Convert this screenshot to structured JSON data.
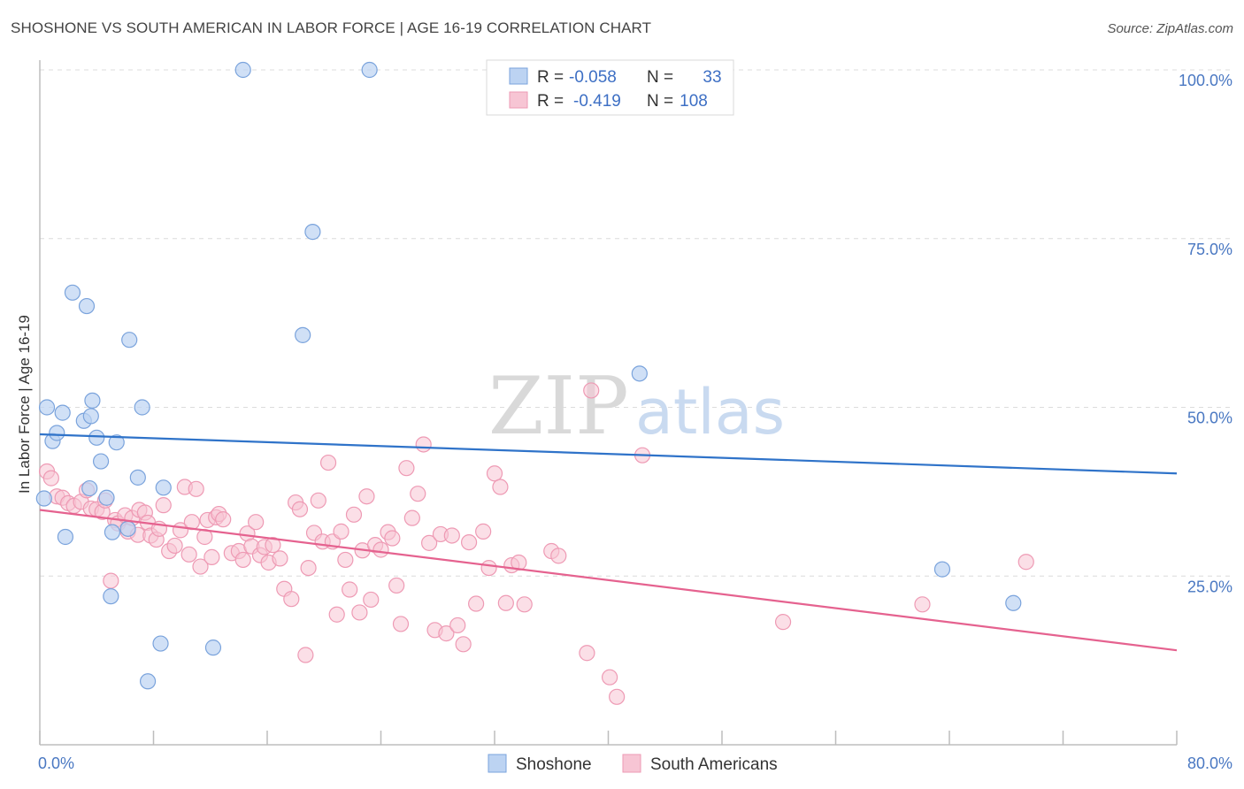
{
  "title": "SHOSHONE VS SOUTH AMERICAN IN LABOR FORCE | AGE 16-19 CORRELATION CHART",
  "source": "Source: ZipAtlas.com",
  "watermark": {
    "zip": "ZIP",
    "atlas": "atlas"
  },
  "legend_top": {
    "rows": [
      {
        "r_label": "R =",
        "r_value": "-0.058",
        "n_label": "N =",
        "n_value": "33"
      },
      {
        "r_label": "R =",
        "r_value": "-0.419",
        "n_label": "N =",
        "n_value": "108"
      }
    ]
  },
  "legend_bottom": {
    "items": [
      "Shoshone",
      "South Americans"
    ]
  },
  "colors": {
    "shoshone_fill": "#bcd3f2",
    "shoshone_stroke": "#7aa3dc",
    "shoshone_line": "#2f73c9",
    "south_fill": "#f7c5d4",
    "south_stroke": "#ee9ab4",
    "south_line": "#e5628f",
    "tick_label": "#4a78c2"
  },
  "chart_data": {
    "type": "scatter",
    "title": "SHOSHONE VS SOUTH AMERICAN IN LABOR FORCE | AGE 16-19 CORRELATION CHART",
    "ylabel": "In Labor Force | Age 16-19",
    "xlim": [
      0,
      80
    ],
    "ylim": [
      0,
      100
    ],
    "x_tick_labels": [
      "0.0%",
      "80.0%"
    ],
    "y_tick_labels": [
      "25.0%",
      "50.0%",
      "75.0%",
      "100.0%"
    ],
    "y_ticks": [
      25,
      50,
      75,
      100
    ],
    "grid": "horizontal dashed",
    "legend_position": "top-center",
    "series": [
      {
        "name": "Shoshone",
        "r": -0.058,
        "n": 33,
        "trend": {
          "x": [
            0,
            80
          ],
          "y": [
            46.0,
            40.2
          ]
        },
        "points": [
          [
            0.3,
            36.5
          ],
          [
            0.5,
            50
          ],
          [
            0.9,
            45
          ],
          [
            1.2,
            46.2
          ],
          [
            1.6,
            49.2
          ],
          [
            2.3,
            67
          ],
          [
            3.1,
            48
          ],
          [
            3.3,
            65
          ],
          [
            3.5,
            38
          ],
          [
            3.6,
            48.7
          ],
          [
            3.7,
            51
          ],
          [
            4.0,
            45.5
          ],
          [
            4.3,
            42
          ],
          [
            4.7,
            36.6
          ],
          [
            5.1,
            31.5
          ],
          [
            5.0,
            22
          ],
          [
            5.4,
            44.8
          ],
          [
            6.2,
            32
          ],
          [
            6.3,
            60
          ],
          [
            6.9,
            39.6
          ],
          [
            7.2,
            50
          ],
          [
            8.7,
            38.1
          ],
          [
            7.6,
            9.4
          ],
          [
            8.5,
            15
          ],
          [
            12.2,
            14.4
          ],
          [
            14.3,
            100
          ],
          [
            18.5,
            60.7
          ],
          [
            19.2,
            76
          ],
          [
            23.2,
            100
          ],
          [
            42.2,
            55
          ],
          [
            63.5,
            26
          ],
          [
            68.5,
            21
          ],
          [
            1.8,
            30.8
          ]
        ]
      },
      {
        "name": "South Americans",
        "r": -0.419,
        "n": 108,
        "trend": {
          "x": [
            0,
            80
          ],
          "y": [
            34.8,
            14.0
          ]
        },
        "points": [
          [
            0.5,
            40.5
          ],
          [
            0.8,
            39.5
          ],
          [
            1.2,
            36.8
          ],
          [
            1.6,
            36.6
          ],
          [
            2.0,
            35.8
          ],
          [
            2.4,
            35.4
          ],
          [
            2.9,
            36
          ],
          [
            3.3,
            37.7
          ],
          [
            3.6,
            35
          ],
          [
            4.0,
            34.9
          ],
          [
            4.4,
            34.5
          ],
          [
            4.6,
            36.2
          ],
          [
            5.0,
            24.3
          ],
          [
            5.3,
            33.3
          ],
          [
            5.5,
            32.8
          ],
          [
            6.0,
            34
          ],
          [
            6.2,
            31.6
          ],
          [
            6.5,
            33.6
          ],
          [
            6.9,
            31.1
          ],
          [
            7.0,
            34.8
          ],
          [
            7.4,
            34.4
          ],
          [
            7.6,
            32.9
          ],
          [
            7.8,
            31
          ],
          [
            8.2,
            30.4
          ],
          [
            8.4,
            32
          ],
          [
            8.7,
            35.5
          ],
          [
            9.1,
            28.7
          ],
          [
            9.5,
            29.5
          ],
          [
            9.9,
            31.8
          ],
          [
            10.2,
            38.2
          ],
          [
            10.5,
            28.2
          ],
          [
            10.7,
            33
          ],
          [
            11.0,
            37.9
          ],
          [
            11.3,
            26.4
          ],
          [
            11.6,
            30.8
          ],
          [
            11.8,
            33.3
          ],
          [
            12.1,
            27.8
          ],
          [
            12.4,
            33.7
          ],
          [
            12.6,
            34.2
          ],
          [
            12.9,
            33.4
          ],
          [
            13.5,
            28.4
          ],
          [
            14.0,
            28.7
          ],
          [
            14.3,
            27.4
          ],
          [
            14.6,
            31.3
          ],
          [
            14.9,
            29.4
          ],
          [
            15.2,
            33
          ],
          [
            15.5,
            28.1
          ],
          [
            15.8,
            29.3
          ],
          [
            16.1,
            27
          ],
          [
            16.4,
            29.6
          ],
          [
            16.9,
            27.6
          ],
          [
            17.2,
            23.1
          ],
          [
            17.7,
            21.6
          ],
          [
            18.0,
            35.9
          ],
          [
            18.3,
            34.9
          ],
          [
            18.7,
            13.3
          ],
          [
            18.9,
            26.2
          ],
          [
            19.3,
            31.4
          ],
          [
            19.6,
            36.2
          ],
          [
            19.9,
            30.1
          ],
          [
            20.3,
            41.8
          ],
          [
            20.6,
            30.1
          ],
          [
            20.9,
            19.3
          ],
          [
            21.2,
            31.6
          ],
          [
            21.5,
            27.4
          ],
          [
            21.8,
            23
          ],
          [
            22.1,
            34.1
          ],
          [
            22.5,
            19.6
          ],
          [
            22.7,
            28.8
          ],
          [
            23.0,
            36.8
          ],
          [
            23.3,
            21.5
          ],
          [
            23.6,
            29.6
          ],
          [
            24.0,
            28.9
          ],
          [
            24.5,
            31.5
          ],
          [
            24.8,
            30.6
          ],
          [
            25.1,
            23.6
          ],
          [
            25.4,
            17.9
          ],
          [
            25.8,
            41
          ],
          [
            26.2,
            33.6
          ],
          [
            26.6,
            37.2
          ],
          [
            27.0,
            44.5
          ],
          [
            27.4,
            29.9
          ],
          [
            27.8,
            17
          ],
          [
            28.2,
            31.2
          ],
          [
            28.6,
            16.5
          ],
          [
            29.0,
            31
          ],
          [
            29.4,
            17.7
          ],
          [
            29.8,
            14.9
          ],
          [
            30.2,
            30
          ],
          [
            30.7,
            20.9
          ],
          [
            31.2,
            31.6
          ],
          [
            31.6,
            26.2
          ],
          [
            32.0,
            40.2
          ],
          [
            32.4,
            38.2
          ],
          [
            32.8,
            21
          ],
          [
            33.2,
            26.6
          ],
          [
            33.7,
            27
          ],
          [
            34.1,
            20.8
          ],
          [
            36.0,
            28.7
          ],
          [
            36.5,
            28
          ],
          [
            38.5,
            13.6
          ],
          [
            38.8,
            52.5
          ],
          [
            40.1,
            10
          ],
          [
            40.6,
            7.1
          ],
          [
            42.4,
            42.9
          ],
          [
            52.3,
            18.2
          ],
          [
            62.1,
            20.8
          ],
          [
            69.4,
            27.1
          ]
        ]
      }
    ]
  }
}
